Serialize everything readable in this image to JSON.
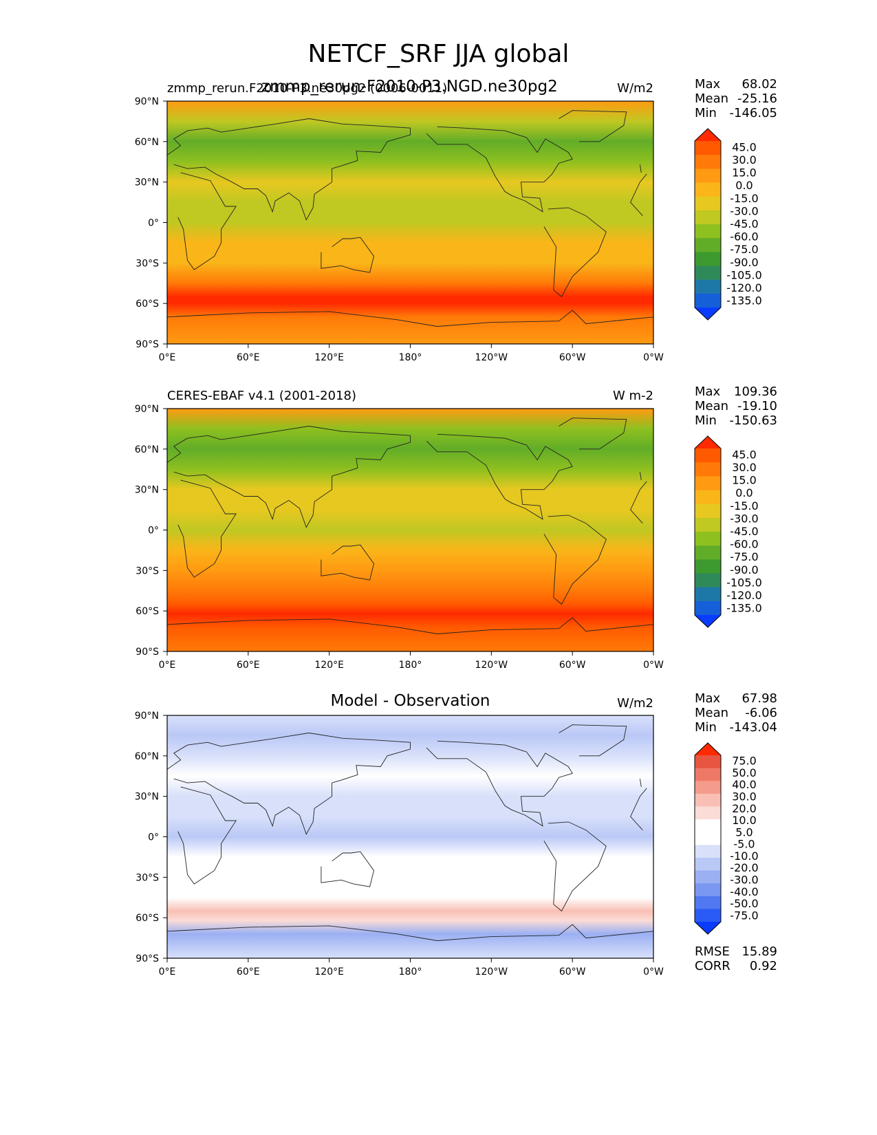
{
  "figure": {
    "title": "NETCF_SRF JJA global"
  },
  "colors": {
    "field_levels": [
      "#0a3cff",
      "#1560d8",
      "#1d78a8",
      "#2f8a5a",
      "#3d9a2e",
      "#62ad28",
      "#8ec01f",
      "#c0c822",
      "#e7c820",
      "#fab519",
      "#ff9a12",
      "#ff7a08",
      "#ff5a00",
      "#ff2a00"
    ],
    "diff_levels": [
      "#0a3cff",
      "#2a5cf5",
      "#5078f0",
      "#7a98f0",
      "#9bb0f3",
      "#bac8f6",
      "#d8e0fa",
      "#ffffff",
      "#ffffff",
      "#fbdcd6",
      "#f9bfb5",
      "#f49b8c",
      "#ee7866",
      "#e85540",
      "#ff2a00"
    ]
  },
  "axes_ticks": {
    "lat": [
      "90°N",
      "60°N",
      "30°N",
      "0°",
      "30°S",
      "60°S",
      "90°S"
    ],
    "lon": [
      "0°E",
      "60°E",
      "120°E",
      "180°",
      "120°W",
      "60°W",
      "0°W"
    ]
  },
  "chart_data": [
    {
      "type": "heatmap",
      "title_left": "zmmp_rerun.F2010-P3.ne30pg2 (0006-0011)",
      "title_center": "zmmp_rerun-F2010-P3.NGD.ne30pg2",
      "units": "W/m2",
      "stats": {
        "max_label": "Max",
        "max": "68.02",
        "mean_label": "Mean",
        "mean": "-25.16",
        "min_label": "Min",
        "min": "-146.05"
      },
      "colorbar_levels": [
        "45.0",
        "30.0",
        "15.0",
        "0.0",
        "-15.0",
        "-30.0",
        "-45.0",
        "-60.0",
        "-75.0",
        "-90.0",
        "-105.0",
        "-120.0",
        "-135.0"
      ],
      "x_range": [
        "0°E",
        "0°W"
      ],
      "y_range": [
        "90°S",
        "90°N"
      ],
      "field_bands": [
        {
          "lat": 90,
          "level": 10
        },
        {
          "lat": 75,
          "level": 7
        },
        {
          "lat": 60,
          "level": 5
        },
        {
          "lat": 45,
          "level": 6
        },
        {
          "lat": 30,
          "level": 8
        },
        {
          "lat": 15,
          "level": 7
        },
        {
          "lat": 0,
          "level": 7
        },
        {
          "lat": -15,
          "level": 9
        },
        {
          "lat": -30,
          "level": 9
        },
        {
          "lat": -45,
          "level": 11
        },
        {
          "lat": -55,
          "level": 13
        },
        {
          "lat": -60,
          "level": 13
        },
        {
          "lat": -70,
          "level": 11
        },
        {
          "lat": -90,
          "level": 10
        }
      ]
    },
    {
      "type": "heatmap",
      "title_left": "CERES-EBAF v4.1 (2001-2018)",
      "title_center": "",
      "units": "W m-2",
      "stats": {
        "max_label": "Max",
        "max": "109.36",
        "mean_label": "Mean",
        "mean": "-19.10",
        "min_label": "Min",
        "min": "-150.63"
      },
      "colorbar_levels": [
        "45.0",
        "30.0",
        "15.0",
        "0.0",
        "-15.0",
        "-30.0",
        "-45.0",
        "-60.0",
        "-75.0",
        "-90.0",
        "-105.0",
        "-120.0",
        "-135.0"
      ],
      "x_range": [
        "0°E",
        "0°W"
      ],
      "y_range": [
        "90°S",
        "90°N"
      ],
      "field_bands": [
        {
          "lat": 90,
          "level": 10
        },
        {
          "lat": 75,
          "level": 6
        },
        {
          "lat": 60,
          "level": 5
        },
        {
          "lat": 45,
          "level": 6
        },
        {
          "lat": 30,
          "level": 8
        },
        {
          "lat": 15,
          "level": 8
        },
        {
          "lat": 0,
          "level": 7
        },
        {
          "lat": -15,
          "level": 9
        },
        {
          "lat": -30,
          "level": 10
        },
        {
          "lat": -45,
          "level": 11
        },
        {
          "lat": -55,
          "level": 12
        },
        {
          "lat": -62,
          "level": 13
        },
        {
          "lat": -72,
          "level": 12
        },
        {
          "lat": -90,
          "level": 11
        }
      ]
    },
    {
      "type": "heatmap",
      "title_left": "",
      "title_center": "Model - Observation",
      "units": "W/m2",
      "stats": {
        "max_label": "Max",
        "max": "67.98",
        "mean_label": "Mean",
        "mean": "-6.06",
        "min_label": "Min",
        "min": "-143.04"
      },
      "colorbar_levels": [
        "75.0",
        "50.0",
        "40.0",
        "30.0",
        "20.0",
        "10.0",
        "5.0",
        "-5.0",
        "-10.0",
        "-20.0",
        "-30.0",
        "-40.0",
        "-50.0",
        "-75.0"
      ],
      "metrics": {
        "rmse_label": "RMSE",
        "rmse": "15.89",
        "corr_label": "CORR",
        "corr": "0.92"
      },
      "x_range": [
        "0°E",
        "0°W"
      ],
      "y_range": [
        "90°S",
        "90°N"
      ],
      "field_bands": [
        {
          "lat": 90,
          "level": 6
        },
        {
          "lat": 75,
          "level": 5
        },
        {
          "lat": 60,
          "level": 6
        },
        {
          "lat": 45,
          "level": 7
        },
        {
          "lat": 30,
          "level": 6
        },
        {
          "lat": 15,
          "level": 6
        },
        {
          "lat": 0,
          "level": 5
        },
        {
          "lat": -15,
          "level": 7
        },
        {
          "lat": -30,
          "level": 7
        },
        {
          "lat": -45,
          "level": 8
        },
        {
          "lat": -55,
          "level": 10
        },
        {
          "lat": -62,
          "level": 9
        },
        {
          "lat": -72,
          "level": 4
        },
        {
          "lat": -90,
          "level": 6
        }
      ]
    }
  ]
}
